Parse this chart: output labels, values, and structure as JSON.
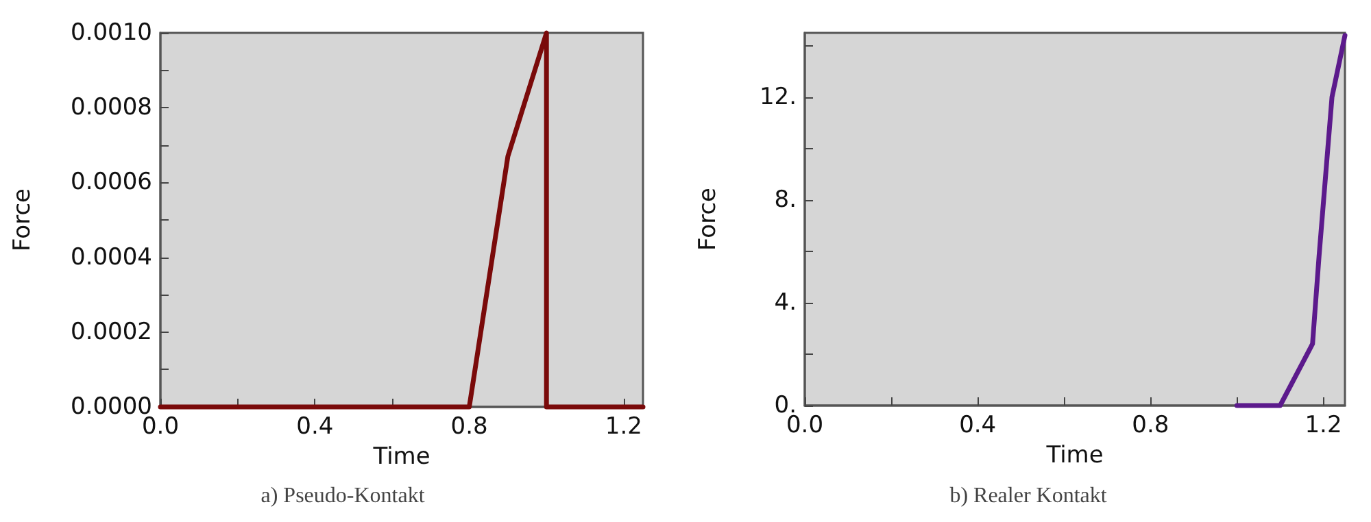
{
  "chart_data": [
    {
      "type": "line",
      "title": "a) Pseudo-Kontakt",
      "xlabel": "Time",
      "ylabel": "Force",
      "series": [
        {
          "color": "#7a0a0a",
          "x": [
            0,
            0.8,
            0.9,
            1.0,
            1.0,
            1.25
          ],
          "values": [
            0,
            0,
            0.00067,
            0.001,
            0,
            0
          ]
        }
      ],
      "xlim": [
        0,
        1.25
      ],
      "xticks": [
        {
          "value": 0,
          "label": "0.0"
        },
        {
          "value": 0.2,
          "label": null
        },
        {
          "value": 0.4,
          "label": "0.4"
        },
        {
          "value": 0.6,
          "label": null
        },
        {
          "value": 0.8,
          "label": "0.8"
        },
        {
          "value": 1.0,
          "label": null
        },
        {
          "value": 1.2,
          "label": "1.2"
        }
      ],
      "ylim": [
        0,
        0.001
      ],
      "yticks": [
        {
          "value": 0,
          "label": "0.0000"
        },
        {
          "value": 0.0001,
          "label": null
        },
        {
          "value": 0.0002,
          "label": "0.0002"
        },
        {
          "value": 0.0003,
          "label": null
        },
        {
          "value": 0.0004,
          "label": "0.0004"
        },
        {
          "value": 0.0005,
          "label": null
        },
        {
          "value": 0.0006,
          "label": "0.0006"
        },
        {
          "value": 0.0007,
          "label": null
        },
        {
          "value": 0.0008,
          "label": "0.0008"
        },
        {
          "value": 0.0009,
          "label": null
        },
        {
          "value": 0.001,
          "label": "0.0010"
        }
      ],
      "grid": false,
      "marker": "none",
      "line_style": "solid"
    },
    {
      "type": "line",
      "title": "b) Realer Kontakt",
      "xlabel": "Time",
      "ylabel": "Force",
      "series": [
        {
          "color": "#5c1a8c",
          "x": [
            1.0,
            1.1,
            1.175,
            1.19,
            1.22,
            1.25
          ],
          "values": [
            0,
            0,
            2.4,
            5.8,
            12,
            14.4
          ]
        }
      ],
      "xlim": [
        0,
        1.25
      ],
      "xticks": [
        {
          "value": 0,
          "label": "0.0"
        },
        {
          "value": 0.2,
          "label": null
        },
        {
          "value": 0.4,
          "label": "0.4"
        },
        {
          "value": 0.6,
          "label": null
        },
        {
          "value": 0.8,
          "label": "0.8"
        },
        {
          "value": 1.0,
          "label": null
        },
        {
          "value": 1.2,
          "label": "1.2"
        }
      ],
      "ylim": [
        0,
        14.5
      ],
      "yticks": [
        {
          "value": 0,
          "label": "0."
        },
        {
          "value": 2,
          "label": null
        },
        {
          "value": 4,
          "label": "4."
        },
        {
          "value": 6,
          "label": null
        },
        {
          "value": 8,
          "label": "8."
        },
        {
          "value": 10,
          "label": null
        },
        {
          "value": 12,
          "label": "12."
        },
        {
          "value": 14,
          "label": null
        }
      ],
      "grid": false,
      "marker": "none",
      "line_style": "solid"
    }
  ]
}
